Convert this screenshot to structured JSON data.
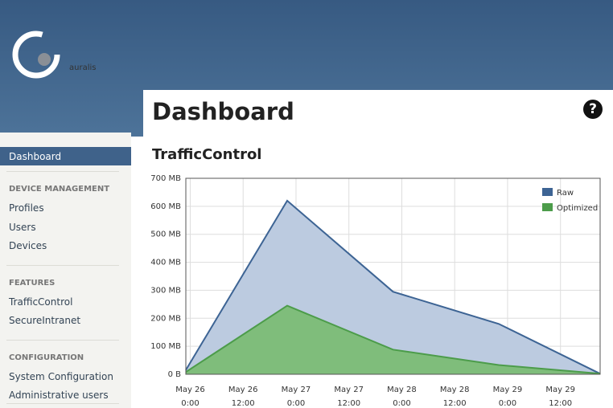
{
  "header": {
    "logo": "auralis"
  },
  "page": {
    "title": "Dashboard",
    "help": "?"
  },
  "sidebar": {
    "active": "Dashboard",
    "sections": [
      {
        "title": "DEVICE MANAGEMENT",
        "items": [
          "Profiles",
          "Users",
          "Devices"
        ]
      },
      {
        "title": "FEATURES",
        "items": [
          "TrafficControl",
          "SecureIntranet"
        ]
      },
      {
        "title": "CONFIGURATION",
        "items": [
          "System Configuration",
          "Administrative users"
        ]
      }
    ]
  },
  "chart_data": {
    "type": "area",
    "title": "TrafficControl",
    "x": [
      "May 25 23:00",
      "May 26 22:00",
      "May 27 22:00",
      "May 28 22:00",
      "May 29 21:00"
    ],
    "xlim": [
      "May 25 23:00",
      "May 29 21:00"
    ],
    "xticks": [
      {
        "value": "May 26 0:00",
        "label": [
          "May 26",
          "0:00"
        ]
      },
      {
        "value": "May 26 12:00",
        "label": [
          "May 26",
          "12:00"
        ]
      },
      {
        "value": "May 27 0:00",
        "label": [
          "May 27",
          "0:00"
        ]
      },
      {
        "value": "May 27 12:00",
        "label": [
          "May 27",
          "12:00"
        ]
      },
      {
        "value": "May 28 0:00",
        "label": [
          "May 28",
          "0:00"
        ]
      },
      {
        "value": "May 28 12:00",
        "label": [
          "May 28",
          "12:00"
        ]
      },
      {
        "value": "May 29 0:00",
        "label": [
          "May 29",
          "0:00"
        ]
      },
      {
        "value": "May 29 12:00",
        "label": [
          "May 29",
          "12:00"
        ]
      }
    ],
    "ylim": [
      0,
      700
    ],
    "yticks": [
      {
        "value": 0,
        "label": "0 B"
      },
      {
        "value": 100,
        "label": "100 MB"
      },
      {
        "value": 200,
        "label": "200 MB"
      },
      {
        "value": 300,
        "label": "300 MB"
      },
      {
        "value": 400,
        "label": "400 MB"
      },
      {
        "value": 500,
        "label": "500 MB"
      },
      {
        "value": 600,
        "label": "600 MB"
      },
      {
        "value": 700,
        "label": "700 MB"
      }
    ],
    "grid": true,
    "legend": "top-right",
    "series": [
      {
        "name": "Raw",
        "color": "#3d6494",
        "fill": "#bccbe0",
        "values": [
          15,
          620,
          295,
          180,
          2
        ]
      },
      {
        "name": "Optimized",
        "color": "#4c9c4a",
        "fill": "#7fbd7b",
        "values": [
          8,
          245,
          88,
          33,
          2
        ]
      }
    ]
  }
}
